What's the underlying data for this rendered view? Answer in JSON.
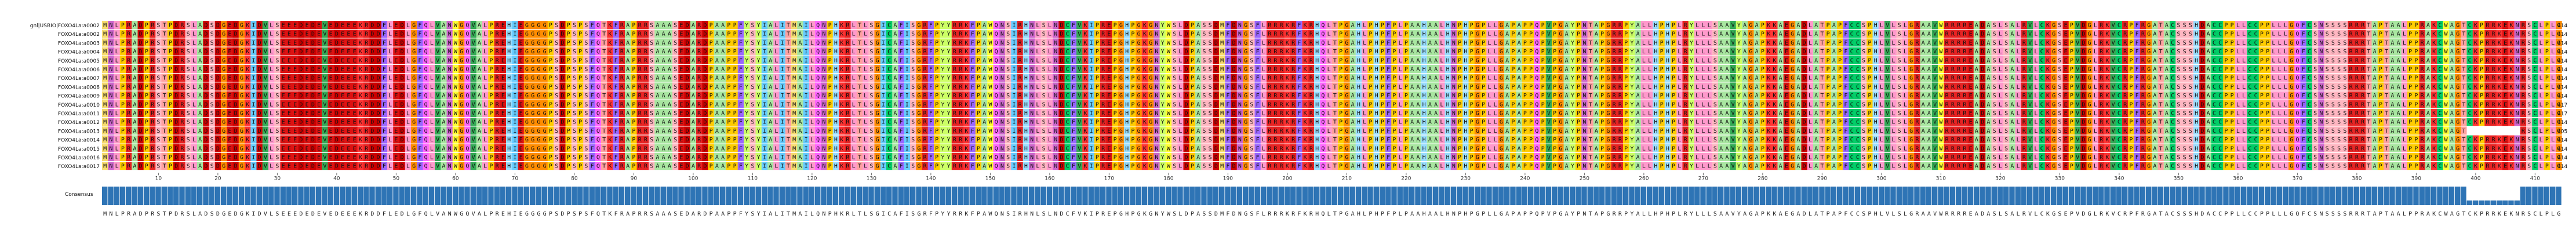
{
  "alignment": {
    "sequences": [
      {
        "name": "gnl|USBIO|FOXO4La:a0002",
        "length": "414"
      },
      {
        "name": "FOXO4La:a0002",
        "length": "414"
      },
      {
        "name": "FOXO4La:a0003",
        "length": "414"
      },
      {
        "name": "FOXO4La:a0004",
        "length": "414"
      },
      {
        "name": "FOXO4La:a0005",
        "length": "414"
      },
      {
        "name": "FOXO4La:a0006",
        "length": "414"
      },
      {
        "name": "FOXO4La:a0007",
        "length": "414"
      },
      {
        "name": "FOXO4La:a0008",
        "length": "414"
      },
      {
        "name": "FOXO4La:a0009",
        "length": "414"
      },
      {
        "name": "FOXO4La:a0010",
        "length": "417"
      },
      {
        "name": "FOXO4La:a0011",
        "length": "417"
      },
      {
        "name": "FOXO4La:a0012",
        "length": "414"
      },
      {
        "name": "FOXO4La:a0013",
        "length": "405"
      },
      {
        "name": "FOXO4La:a0014",
        "length": "414"
      },
      {
        "name": "FOXO4La:a0015",
        "length": "414"
      },
      {
        "name": "FOXO4La:a0016",
        "length": "414"
      },
      {
        "name": "FOXO4La:a0017",
        "length": "414"
      }
    ],
    "consensus_label": "Consensus",
    "consensus_sequence": "MNLPRADPRSTPDRSLADSDGEDGKIDVLSEEEDEDEVEDEEEKRDDFLEDLGFQLVANWGQVALPREHIEGGGGPSDPSPSFQTKFRAPRRSAAASEDARDPAAPPFYSYIALITMAILQNPHKRLTLSGICAFISGRFPYYRRKFPAWQNSIRHNLSLNDCFVKIPREPGHPGKGNYWSLDPASSDMFDNGSFLRRRKRFKRHQLTPGAHLPHPFPLPAAHAALHNPHPGPLLGAPAPPQPVPGAYPNTAPGRRPYALLHPHPLRYLLLSAAVYAGAPKKAEGADLATPAPFCCSPHLVLSLGRAAVWRRRREADASLSALRVLCKGSEPVDGLRKVCRPFRGATACSSSHDACCPPLLCCPPLLLGQFCSNSSSSRRRTAPTAALPPRAKCWAGTCKPRRKEKNRSCLPLGPSHSPPSPWRQFCCRLGNLLLGAFQTEQRWA",
    "ticks": [
      "10",
      "20",
      "30",
      "40",
      "50",
      "60",
      "70",
      "80",
      "90",
      "100",
      "110",
      "120",
      "130",
      "140",
      "150",
      "160",
      "170",
      "180",
      "190",
      "200",
      "210",
      "220",
      "230",
      "240",
      "250",
      "260",
      "270",
      "280",
      "290",
      "300",
      "310",
      "320",
      "330",
      "340",
      "350",
      "360",
      "370",
      "380",
      "390",
      "400",
      "410"
    ],
    "colors": {
      "M": "#f7dc6f",
      "N": "#cc66cc",
      "L": "#ff99cc",
      "P": "#ffcc00",
      "R": "#e62222",
      "A": "#a8e6a0",
      "D": "#cc0000",
      "S": "#ffb6c1",
      "T": "#ffa0a0",
      "E": "#dd1111",
      "G": "#ff8c00",
      "K": "#ff3333",
      "I": "#66ccff",
      "V": "#33aa55",
      "F": "#9966ff",
      "Q": "#ff66ff",
      "W": "#ffff33",
      "H": "#99ddff",
      "Y": "#ccff66",
      "C": "#00cc66",
      "gap": "#ffffff",
      "conservation_bar": "#2e74b5"
    }
  }
}
